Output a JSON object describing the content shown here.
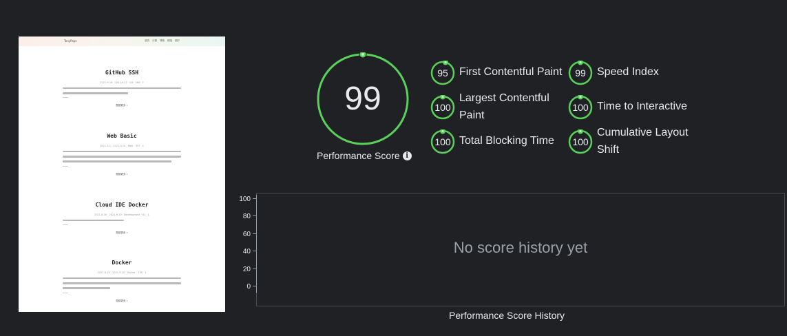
{
  "thumbnail": {
    "brand": "TonyPeps",
    "nav": [
      "首頁",
      "分類",
      "標籤",
      "歸檔",
      "關於"
    ],
    "posts": [
      {
        "title": "GitHub SSH",
        "meta": "2021-9-16 · 2021-9-17 · Git · 369 · 2",
        "more": "閱讀更多 »"
      },
      {
        "title": "Web Basic",
        "meta": "2021-9-1 · 2021-9-10 · Web · 357 · 1",
        "more": "閱讀更多 »"
      },
      {
        "title": "Cloud IDE Docker",
        "meta": "2021-8-30 · 2021-9-10 · Development · 61 · 1",
        "more": "閱讀更多 »"
      },
      {
        "title": "Docker",
        "meta": "2021-8-28 · 2021-9-10 · Docker · 236 · 1",
        "more": "閱讀更多 »"
      }
    ]
  },
  "performance": {
    "score": "99",
    "score_fraction": 0.99,
    "label": "Performance Score",
    "info_icon": "info-icon",
    "accent_color": "#5ad05a"
  },
  "metrics": [
    {
      "name": "First Contentful Paint",
      "value": "95"
    },
    {
      "name": "Speed Index",
      "value": "99"
    },
    {
      "name": "Largest Contentful Paint",
      "line1": "Largest Contentful",
      "line2": "Paint",
      "value": "100"
    },
    {
      "name": "Time to Interactive",
      "value": "100"
    },
    {
      "name": "Total Blocking Time",
      "value": "100"
    },
    {
      "name": "Cumulative Layout Shift",
      "line1": "Cumulative Layout",
      "line2": "Shift",
      "value": "100"
    }
  ],
  "history": {
    "title": "Performance Score History",
    "empty_message": "No score history yet",
    "y_ticks": [
      "100",
      "80",
      "60",
      "40",
      "20",
      "0"
    ]
  }
}
